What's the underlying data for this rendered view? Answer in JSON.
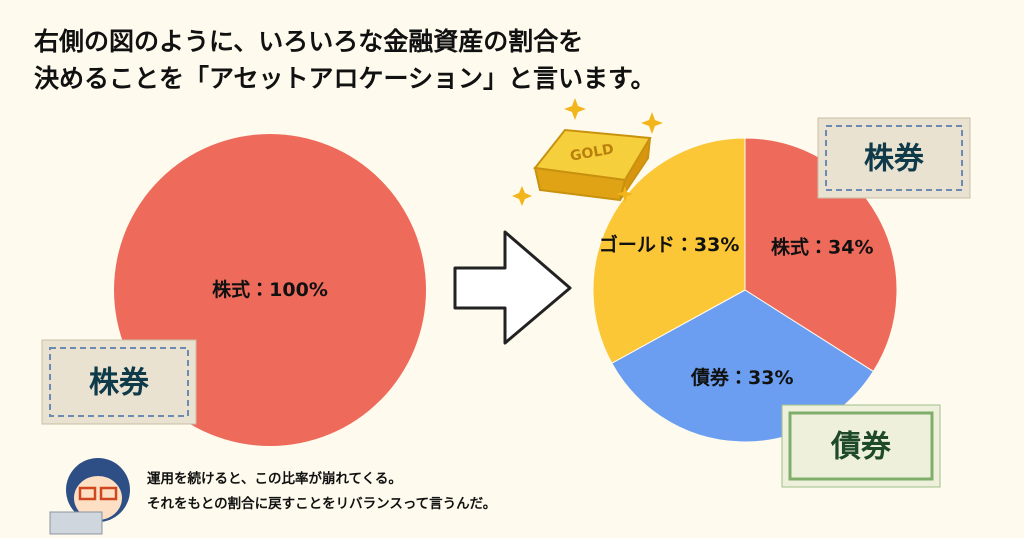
{
  "header": {
    "lines": [
      "右側の図のように、いろいろな金融資産の割合を",
      "決めることを「アセットアロケーション」と言います。"
    ]
  },
  "chart_data": [
    {
      "type": "pie",
      "categories": [
        "株式"
      ],
      "values": [
        100
      ],
      "value_labels": [
        "100%"
      ],
      "colors": [
        "#ee6a5b"
      ],
      "label_separator": "："
    },
    {
      "type": "pie",
      "categories": [
        "株式",
        "債券",
        "ゴールド"
      ],
      "values": [
        34,
        33,
        33
      ],
      "value_labels": [
        "34%",
        "33%",
        "33%"
      ],
      "colors": [
        "#ee6a5b",
        "#6b9ef0",
        "#fbc736"
      ],
      "label_separator": "："
    }
  ],
  "illustrations": {
    "stock_left": "株券",
    "stock_right": "株券",
    "bond": "債券",
    "gold": "GOLD"
  },
  "caption": {
    "lines": [
      "運用を続けると、この比率が崩れてくる。",
      "それをもとの割合に戻すことをリバランスって言うんだ。"
    ]
  }
}
